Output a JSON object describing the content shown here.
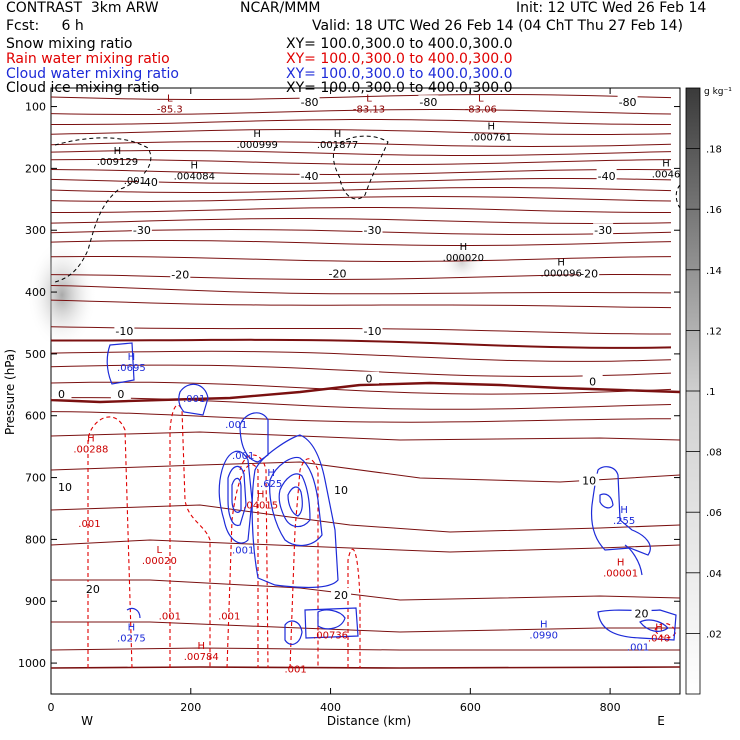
{
  "header": {
    "title": "CONTRAST  3km ARW",
    "center": "NCAR/MMM",
    "init": "Init: 12 UTC Wed 26 Feb 14",
    "fcst": "Fcst:     6 h",
    "valid": "Valid: 18 UTC Wed 26 Feb 14 (04 ChT Thu 27 Feb 14)",
    "xy_line": "XY= 100.0,300.0 to 400.0,300.0"
  },
  "legend": [
    {
      "name": "Snow mixing ratio",
      "color": "#000000"
    },
    {
      "name": "Rain water mixing ratio",
      "color": "#e00000"
    },
    {
      "name": "Cloud water mixing ratio",
      "color": "#1d2bd8"
    },
    {
      "name": "Cloud ice mixing ratio",
      "color": "#000000"
    }
  ],
  "chart_data": {
    "type": "contour-cross-section",
    "xlabel": "Distance (km)",
    "ylabel": "Pressure (hPa)",
    "xlim": [
      0,
      900
    ],
    "ylim": [
      1050,
      70
    ],
    "xticks": [
      0,
      200,
      400,
      600,
      800
    ],
    "yticks": [
      100,
      200,
      300,
      400,
      500,
      600,
      700,
      800,
      900,
      1000
    ],
    "end_labels": {
      "left": "W",
      "right": "E"
    },
    "colorbar": {
      "unit": "g kg⁻¹",
      "ticks": [
        ".02",
        ".04",
        ".06",
        ".08",
        ".1",
        ".12",
        ".14",
        ".16",
        ".18"
      ]
    },
    "temperature_labels": [
      {
        "x": 370,
        "p": 93,
        "text": "-80"
      },
      {
        "x": 540,
        "p": 93,
        "text": "-80"
      },
      {
        "x": 825,
        "p": 93,
        "text": "-80"
      },
      {
        "x": 140,
        "p": 222,
        "text": "-40"
      },
      {
        "x": 370,
        "p": 212,
        "text": "-40"
      },
      {
        "x": 795,
        "p": 212,
        "text": "-40"
      },
      {
        "x": 130,
        "p": 300,
        "text": "-30"
      },
      {
        "x": 460,
        "p": 300,
        "text": "-30"
      },
      {
        "x": 790,
        "p": 300,
        "text": "-30"
      },
      {
        "x": 185,
        "p": 372,
        "text": "-20"
      },
      {
        "x": 410,
        "p": 370,
        "text": "-20"
      },
      {
        "x": 770,
        "p": 370,
        "text": "-20"
      },
      {
        "x": 105,
        "p": 463,
        "text": "-10"
      },
      {
        "x": 460,
        "p": 463,
        "text": "-10"
      },
      {
        "x": 15,
        "p": 565,
        "text": "0"
      },
      {
        "x": 100,
        "p": 565,
        "text": "0"
      },
      {
        "x": 455,
        "p": 540,
        "text": "0"
      },
      {
        "x": 775,
        "p": 545,
        "text": "0"
      },
      {
        "x": 20,
        "p": 715,
        "text": "10"
      },
      {
        "x": 415,
        "p": 720,
        "text": "10"
      },
      {
        "x": 770,
        "p": 705,
        "text": "10"
      },
      {
        "x": 60,
        "p": 880,
        "text": "20"
      },
      {
        "x": 415,
        "p": 890,
        "text": "20"
      },
      {
        "x": 845,
        "p": 920,
        "text": "20"
      }
    ],
    "extrema_labels": [
      {
        "x": 170,
        "p": 105,
        "mark": "L",
        "value": "-85.3",
        "color": "#8b0000"
      },
      {
        "x": 455,
        "p": 105,
        "mark": "L",
        "value": "-83.13",
        "color": "#8b0000"
      },
      {
        "x": 615,
        "p": 105,
        "mark": "L",
        "value": "-83.06",
        "color": "#8b0000"
      },
      {
        "x": 295,
        "p": 162,
        "mark": "H",
        "value": ".000999",
        "color": "#000000"
      },
      {
        "x": 410,
        "p": 162,
        "mark": "H",
        "value": ".001877",
        "color": "#000000"
      },
      {
        "x": 630,
        "p": 150,
        "mark": "H",
        "value": ".000761",
        "color": "#000000"
      },
      {
        "x": 95,
        "p": 190,
        "mark": "H",
        "value": ".009129",
        "color": "#000000"
      },
      {
        "x": 205,
        "p": 213,
        "mark": "H",
        "value": ".004084",
        "color": "#000000"
      },
      {
        "x": 880,
        "p": 210,
        "mark": "H",
        "value": ".0046",
        "color": "#000000"
      },
      {
        "x": 590,
        "p": 345,
        "mark": "H",
        "value": ".000020",
        "color": "#000000"
      },
      {
        "x": 730,
        "p": 370,
        "mark": "H",
        "value": ".000096",
        "color": "#000000"
      },
      {
        "x": 115,
        "p": 523,
        "mark": "H",
        "value": ".0695",
        "color": "#1d2bd8"
      },
      {
        "x": 57,
        "p": 655,
        "mark": "H",
        "value": ".00288",
        "color": "#cc0000"
      },
      {
        "x": 315,
        "p": 710,
        "mark": "H",
        "value": ".625",
        "color": "#1d2bd8"
      },
      {
        "x": 300,
        "p": 745,
        "mark": "H",
        "value": ".04015",
        "color": "#cc0000"
      },
      {
        "x": 155,
        "p": 835,
        "mark": "L",
        "value": ".00020",
        "color": "#cc0000"
      },
      {
        "x": 820,
        "p": 770,
        "mark": "H",
        "value": ".255",
        "color": "#1d2bd8"
      },
      {
        "x": 815,
        "p": 855,
        "mark": "H",
        "value": ".00001",
        "color": "#cc0000"
      },
      {
        "x": 115,
        "p": 960,
        "mark": "H",
        "value": ".0275",
        "color": "#1d2bd8"
      },
      {
        "x": 215,
        "p": 990,
        "mark": "H",
        "value": ".00784",
        "color": "#cc0000"
      },
      {
        "x": 400,
        "p": 955,
        "mark": "",
        "value": ".00736",
        "color": "#cc0000"
      },
      {
        "x": 705,
        "p": 955,
        "mark": "H",
        "value": ".0990",
        "color": "#1d2bd8"
      },
      {
        "x": 870,
        "p": 960,
        "mark": "H",
        "value": ".040",
        "color": "#cc0000"
      }
    ],
    "contour_value_labels": [
      {
        "x": 120,
        "p": 220,
        "value": ".001",
        "color": "#000000"
      },
      {
        "x": 205,
        "p": 573,
        "value": ".001",
        "color": "#1d2bd8"
      },
      {
        "x": 265,
        "p": 615,
        "value": ".001",
        "color": "#1d2bd8"
      },
      {
        "x": 275,
        "p": 665,
        "value": ".001",
        "color": "#1d2bd8"
      },
      {
        "x": 275,
        "p": 818,
        "value": ".001",
        "color": "#1d2bd8"
      },
      {
        "x": 55,
        "p": 775,
        "value": ".001",
        "color": "#cc0000"
      },
      {
        "x": 170,
        "p": 925,
        "value": ".001",
        "color": "#cc0000"
      },
      {
        "x": 255,
        "p": 925,
        "value": ".001",
        "color": "#cc0000"
      },
      {
        "x": 350,
        "p": 1010,
        "value": ".001",
        "color": "#cc0000"
      },
      {
        "x": 840,
        "p": 975,
        "value": ".001",
        "color": "#1d2bd8"
      }
    ]
  }
}
